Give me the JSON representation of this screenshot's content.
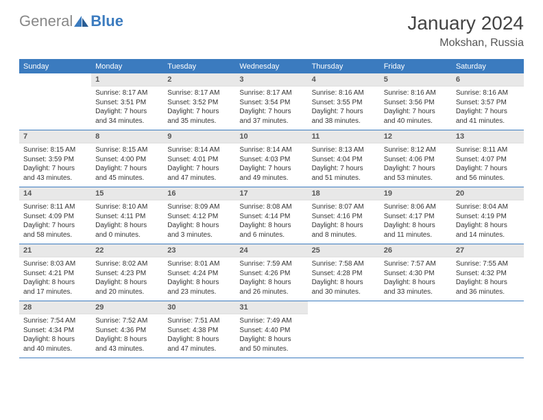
{
  "brand": {
    "general": "General",
    "blue": "Blue"
  },
  "title": "January 2024",
  "location": "Mokshan, Russia",
  "colors": {
    "header_bg": "#3b7bbf",
    "header_text": "#ffffff",
    "daynum_bg": "#e8e8e8",
    "border": "#3b7bbf",
    "text": "#333333"
  },
  "weekdays": [
    "Sunday",
    "Monday",
    "Tuesday",
    "Wednesday",
    "Thursday",
    "Friday",
    "Saturday"
  ],
  "start_offset": 1,
  "days": [
    {
      "n": 1,
      "sr": "8:17 AM",
      "ss": "3:51 PM",
      "dl": "7 hours and 34 minutes."
    },
    {
      "n": 2,
      "sr": "8:17 AM",
      "ss": "3:52 PM",
      "dl": "7 hours and 35 minutes."
    },
    {
      "n": 3,
      "sr": "8:17 AM",
      "ss": "3:54 PM",
      "dl": "7 hours and 37 minutes."
    },
    {
      "n": 4,
      "sr": "8:16 AM",
      "ss": "3:55 PM",
      "dl": "7 hours and 38 minutes."
    },
    {
      "n": 5,
      "sr": "8:16 AM",
      "ss": "3:56 PM",
      "dl": "7 hours and 40 minutes."
    },
    {
      "n": 6,
      "sr": "8:16 AM",
      "ss": "3:57 PM",
      "dl": "7 hours and 41 minutes."
    },
    {
      "n": 7,
      "sr": "8:15 AM",
      "ss": "3:59 PM",
      "dl": "7 hours and 43 minutes."
    },
    {
      "n": 8,
      "sr": "8:15 AM",
      "ss": "4:00 PM",
      "dl": "7 hours and 45 minutes."
    },
    {
      "n": 9,
      "sr": "8:14 AM",
      "ss": "4:01 PM",
      "dl": "7 hours and 47 minutes."
    },
    {
      "n": 10,
      "sr": "8:14 AM",
      "ss": "4:03 PM",
      "dl": "7 hours and 49 minutes."
    },
    {
      "n": 11,
      "sr": "8:13 AM",
      "ss": "4:04 PM",
      "dl": "7 hours and 51 minutes."
    },
    {
      "n": 12,
      "sr": "8:12 AM",
      "ss": "4:06 PM",
      "dl": "7 hours and 53 minutes."
    },
    {
      "n": 13,
      "sr": "8:11 AM",
      "ss": "4:07 PM",
      "dl": "7 hours and 56 minutes."
    },
    {
      "n": 14,
      "sr": "8:11 AM",
      "ss": "4:09 PM",
      "dl": "7 hours and 58 minutes."
    },
    {
      "n": 15,
      "sr": "8:10 AM",
      "ss": "4:11 PM",
      "dl": "8 hours and 0 minutes."
    },
    {
      "n": 16,
      "sr": "8:09 AM",
      "ss": "4:12 PM",
      "dl": "8 hours and 3 minutes."
    },
    {
      "n": 17,
      "sr": "8:08 AM",
      "ss": "4:14 PM",
      "dl": "8 hours and 6 minutes."
    },
    {
      "n": 18,
      "sr": "8:07 AM",
      "ss": "4:16 PM",
      "dl": "8 hours and 8 minutes."
    },
    {
      "n": 19,
      "sr": "8:06 AM",
      "ss": "4:17 PM",
      "dl": "8 hours and 11 minutes."
    },
    {
      "n": 20,
      "sr": "8:04 AM",
      "ss": "4:19 PM",
      "dl": "8 hours and 14 minutes."
    },
    {
      "n": 21,
      "sr": "8:03 AM",
      "ss": "4:21 PM",
      "dl": "8 hours and 17 minutes."
    },
    {
      "n": 22,
      "sr": "8:02 AM",
      "ss": "4:23 PM",
      "dl": "8 hours and 20 minutes."
    },
    {
      "n": 23,
      "sr": "8:01 AM",
      "ss": "4:24 PM",
      "dl": "8 hours and 23 minutes."
    },
    {
      "n": 24,
      "sr": "7:59 AM",
      "ss": "4:26 PM",
      "dl": "8 hours and 26 minutes."
    },
    {
      "n": 25,
      "sr": "7:58 AM",
      "ss": "4:28 PM",
      "dl": "8 hours and 30 minutes."
    },
    {
      "n": 26,
      "sr": "7:57 AM",
      "ss": "4:30 PM",
      "dl": "8 hours and 33 minutes."
    },
    {
      "n": 27,
      "sr": "7:55 AM",
      "ss": "4:32 PM",
      "dl": "8 hours and 36 minutes."
    },
    {
      "n": 28,
      "sr": "7:54 AM",
      "ss": "4:34 PM",
      "dl": "8 hours and 40 minutes."
    },
    {
      "n": 29,
      "sr": "7:52 AM",
      "ss": "4:36 PM",
      "dl": "8 hours and 43 minutes."
    },
    {
      "n": 30,
      "sr": "7:51 AM",
      "ss": "4:38 PM",
      "dl": "8 hours and 47 minutes."
    },
    {
      "n": 31,
      "sr": "7:49 AM",
      "ss": "4:40 PM",
      "dl": "8 hours and 50 minutes."
    }
  ],
  "labels": {
    "sunrise": "Sunrise:",
    "sunset": "Sunset:",
    "daylight": "Daylight:"
  }
}
